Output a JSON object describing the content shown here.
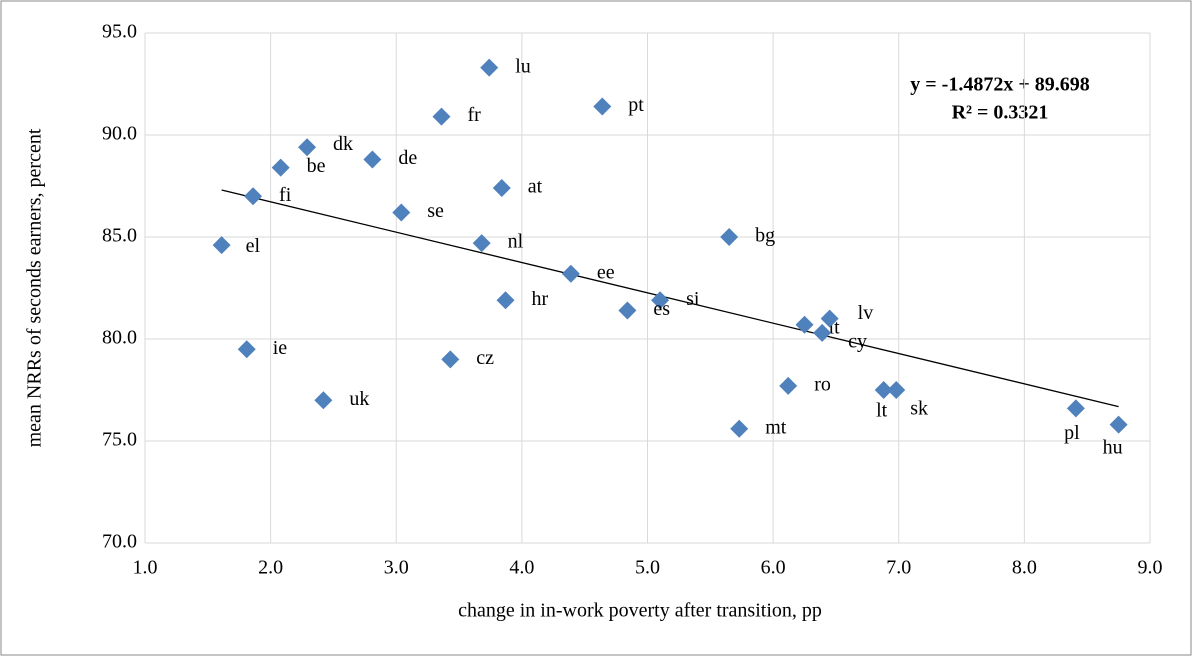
{
  "chart_data": {
    "type": "scatter",
    "x_label": "change in in-work poverty after transition, pp",
    "y_label": "mean NRRs of seconds earners, percent",
    "color": "#4f81bd",
    "grid": true,
    "xlim": [
      1,
      9
    ],
    "ylim": [
      70,
      95
    ],
    "xticks": [
      {
        "value": 1,
        "label": "1.0"
      },
      {
        "value": 2,
        "label": "2.0"
      },
      {
        "value": 3,
        "label": "3.0"
      },
      {
        "value": 4,
        "label": "4.0"
      },
      {
        "value": 5,
        "label": "5.0"
      },
      {
        "value": 6,
        "label": "6.0"
      },
      {
        "value": 7,
        "label": "7.0"
      },
      {
        "value": 8,
        "label": "8.0"
      },
      {
        "value": 9,
        "label": "9.0"
      }
    ],
    "yticks": [
      {
        "value": 70,
        "label": "70.0"
      },
      {
        "value": 75,
        "label": "75.0"
      },
      {
        "value": 80,
        "label": "80.0"
      },
      {
        "value": 85,
        "label": "85.0"
      },
      {
        "value": 90,
        "label": "90.0"
      },
      {
        "value": 95,
        "label": "95.0"
      }
    ],
    "point_labels": [
      "lu",
      "pt",
      "fr",
      "dk",
      "de",
      "be",
      "at",
      "fi",
      "se",
      "el",
      "nl",
      "bg",
      "ee",
      "hr",
      "si",
      "es",
      "it",
      "lv",
      "cy",
      "ie",
      "cz",
      "ro",
      "lt",
      "sk",
      "uk",
      "mt",
      "pl",
      "hu"
    ],
    "x": [
      3.74,
      4.64,
      3.36,
      2.29,
      2.81,
      2.08,
      3.84,
      1.86,
      3.04,
      1.61,
      3.68,
      5.65,
      4.39,
      3.87,
      5.1,
      4.84,
      6.25,
      6.45,
      6.39,
      1.81,
      3.43,
      6.12,
      6.88,
      6.98,
      2.42,
      5.73,
      8.41,
      8.75
    ],
    "values": [
      93.3,
      91.4,
      90.9,
      89.4,
      88.8,
      88.4,
      87.4,
      87.0,
      86.2,
      84.6,
      84.7,
      85.0,
      83.2,
      81.9,
      81.9,
      81.4,
      80.7,
      81.0,
      80.3,
      79.5,
      79.0,
      77.7,
      77.5,
      77.5,
      77.0,
      75.6,
      76.6,
      75.8
    ],
    "trendline": {
      "slope": -1.4872,
      "intercept": 89.698,
      "equation": "y = -1.4872x + 89.698",
      "r2": "R² = 0.3321"
    }
  }
}
